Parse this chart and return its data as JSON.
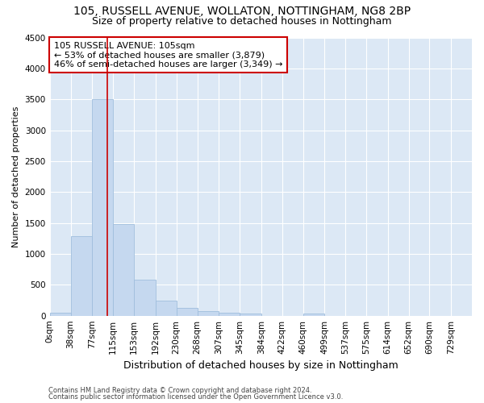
{
  "title1": "105, RUSSELL AVENUE, WOLLATON, NOTTINGHAM, NG8 2BP",
  "title2": "Size of property relative to detached houses in Nottingham",
  "xlabel": "Distribution of detached houses by size in Nottingham",
  "ylabel": "Number of detached properties",
  "bar_edges": [
    0,
    38,
    77,
    115,
    153,
    192,
    230,
    268,
    307,
    345,
    384,
    422,
    460,
    499,
    537,
    575,
    614,
    652,
    690,
    729,
    767
  ],
  "bar_heights": [
    50,
    1280,
    3500,
    1480,
    580,
    240,
    130,
    80,
    50,
    30,
    0,
    0,
    40,
    0,
    0,
    0,
    0,
    0,
    0,
    0
  ],
  "bar_color": "#c5d8ef",
  "bar_edgecolor": "#a0bedd",
  "vline_x": 105,
  "vline_color": "#cc0000",
  "annotation_title": "105 RUSSELL AVENUE: 105sqm",
  "annotation_line2": "← 53% of detached houses are smaller (3,879)",
  "annotation_line3": "46% of semi-detached houses are larger (3,349) →",
  "annotation_box_facecolor": "#ffffff",
  "annotation_box_edgecolor": "#cc0000",
  "ylim": [
    0,
    4500
  ],
  "yticks": [
    0,
    500,
    1000,
    1500,
    2000,
    2500,
    3000,
    3500,
    4000,
    4500
  ],
  "bg_color": "#dce8f5",
  "fig_facecolor": "#ffffff",
  "footer1": "Contains HM Land Registry data © Crown copyright and database right 2024.",
  "footer2": "Contains public sector information licensed under the Open Government Licence v3.0.",
  "title_fontsize": 10,
  "subtitle_fontsize": 9,
  "ylabel_fontsize": 8,
  "xlabel_fontsize": 9,
  "tick_fontsize": 7.5,
  "annotation_fontsize": 8,
  "footer_fontsize": 6
}
